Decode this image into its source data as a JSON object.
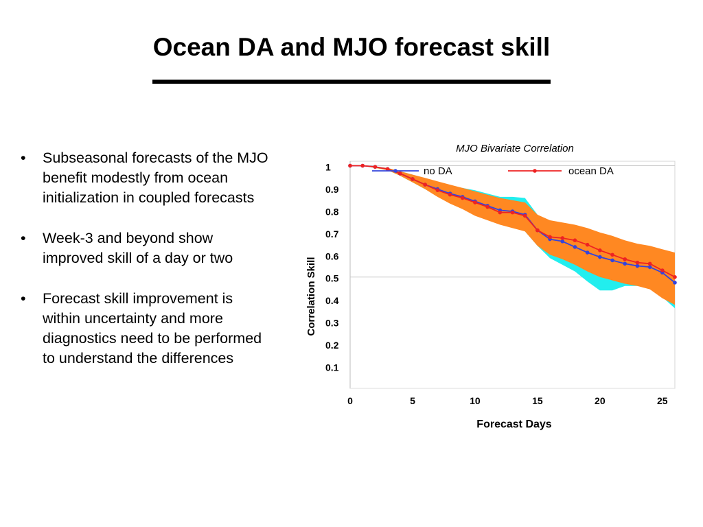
{
  "slide": {
    "title": "Ocean DA and MJO forecast skill",
    "bullets": [
      "Subseasonal forecasts of the MJO benefit modestly from ocean initialization in coupled forecasts",
      "Week-3 and beyond show improved skill of a day or two",
      "Forecast skill improvement is within uncertainty and more diagnostics need to be performed to understand the differences"
    ]
  },
  "chart_data": {
    "type": "line",
    "title": "MJO Bivariate Correlation",
    "xlabel": "Forecast Days",
    "ylabel": "Correlation Skill",
    "xlim": [
      0,
      26
    ],
    "ylim": [
      0,
      1.02
    ],
    "xticks": [
      "0",
      "5",
      "10",
      "15",
      "20",
      "25"
    ],
    "yticks": [
      "1",
      "0.9",
      "0.8",
      "0.7",
      "0.6",
      "0.5",
      "0.4",
      "0.3",
      "0.2",
      "0.1"
    ],
    "grid": "horizontal reference lines at 1.0 and 0.5",
    "legend": "top, horizontal",
    "x": [
      0,
      1,
      2,
      3,
      4,
      5,
      6,
      7,
      8,
      9,
      10,
      11,
      12,
      13,
      14,
      15,
      16,
      17,
      18,
      19,
      20,
      21,
      22,
      23,
      24,
      25,
      26
    ],
    "series": [
      {
        "name": "no DA",
        "color": "#3344dd",
        "values": [
          1.0,
          1.0,
          0.995,
          0.985,
          0.965,
          0.94,
          0.915,
          0.895,
          0.875,
          0.86,
          0.84,
          0.82,
          0.8,
          0.795,
          0.78,
          0.71,
          0.67,
          0.66,
          0.635,
          0.61,
          0.59,
          0.575,
          0.56,
          0.55,
          0.545,
          0.52,
          0.475
        ]
      },
      {
        "name": "ocean DA",
        "color": "#ee2222",
        "values": [
          1.0,
          1.0,
          0.995,
          0.985,
          0.965,
          0.94,
          0.915,
          0.89,
          0.87,
          0.855,
          0.835,
          0.815,
          0.79,
          0.79,
          0.775,
          0.71,
          0.68,
          0.675,
          0.665,
          0.645,
          0.62,
          0.6,
          0.58,
          0.565,
          0.56,
          0.53,
          0.5
        ]
      }
    ],
    "bands": [
      {
        "name": "no DA spread",
        "color": "#22eeee",
        "upper": [
          1.0,
          1.0,
          0.995,
          0.99,
          0.975,
          0.96,
          0.94,
          0.925,
          0.91,
          0.9,
          0.89,
          0.875,
          0.86,
          0.86,
          0.855,
          0.78,
          0.73,
          0.72,
          0.71,
          0.69,
          0.68,
          0.66,
          0.64,
          0.62,
          0.61,
          0.6,
          0.57
        ],
        "lower": [
          1.0,
          1.0,
          0.99,
          0.98,
          0.955,
          0.925,
          0.895,
          0.865,
          0.84,
          0.82,
          0.795,
          0.775,
          0.745,
          0.73,
          0.705,
          0.64,
          0.585,
          0.555,
          0.525,
          0.48,
          0.44,
          0.44,
          0.46,
          0.46,
          0.45,
          0.41,
          0.36
        ]
      },
      {
        "name": "ocean DA spread",
        "color": "#ff8822",
        "upper": [
          1.0,
          1.0,
          0.995,
          0.99,
          0.975,
          0.96,
          0.945,
          0.93,
          0.915,
          0.9,
          0.885,
          0.87,
          0.855,
          0.845,
          0.835,
          0.78,
          0.755,
          0.745,
          0.735,
          0.72,
          0.7,
          0.685,
          0.665,
          0.65,
          0.64,
          0.625,
          0.61
        ],
        "lower": [
          1.0,
          1.0,
          0.99,
          0.98,
          0.955,
          0.925,
          0.895,
          0.86,
          0.83,
          0.805,
          0.775,
          0.755,
          0.735,
          0.72,
          0.705,
          0.64,
          0.6,
          0.58,
          0.555,
          0.525,
          0.5,
          0.485,
          0.47,
          0.46,
          0.445,
          0.405,
          0.375
        ]
      }
    ]
  }
}
